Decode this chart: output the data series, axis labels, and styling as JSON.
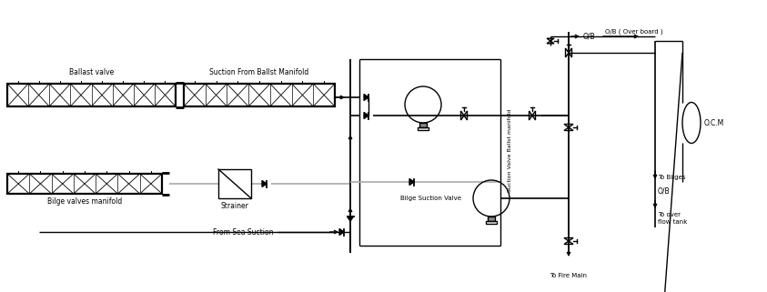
{
  "title": "",
  "bg_color": "#ffffff",
  "line_color": "#000000",
  "gray_color": "#aaaaaa",
  "labels": {
    "ballast_valve": "Ballast valve",
    "suction_ballst": "Suction From Ballst Manifold",
    "bilge_manifold": "Bilge valves manifold",
    "strainer": "Strainer",
    "bilge_suction_valve": "Bilge Suction Valve",
    "suction_valve_ballst": "Suction Valve Ballst manifold",
    "from_sea_suction": "From Sea Suction",
    "ob_label1": "O/B",
    "ob_label2": "O/B ( Over board )",
    "ob_label3": "O/B",
    "ocm": "O.C.M",
    "to_bilges": "To Bilges",
    "to_overflow": "To over\nflow tank",
    "to_fire_main": "To Fire Main"
  },
  "figsize": [
    8.43,
    3.21
  ],
  "dpi": 100
}
